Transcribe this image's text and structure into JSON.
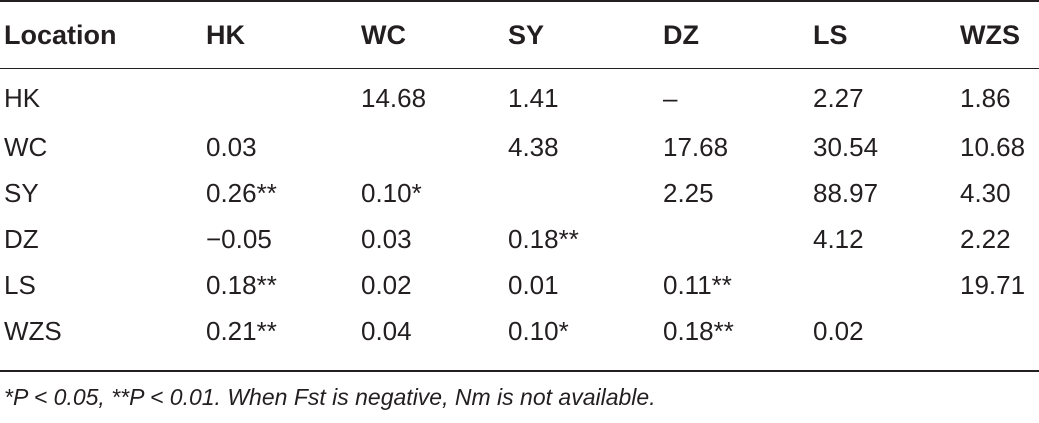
{
  "table": {
    "headers": [
      "Location",
      "HK",
      "WC",
      "SY",
      "DZ",
      "LS",
      "WZS"
    ],
    "rows": [
      [
        "HK",
        "",
        "14.68",
        "1.41",
        "–",
        "2.27",
        "1.86"
      ],
      [
        "WC",
        "0.03",
        "",
        "4.38",
        "17.68",
        "30.54",
        "10.68"
      ],
      [
        "SY",
        "0.26**",
        "0.10*",
        "",
        "2.25",
        "88.97",
        "4.30"
      ],
      [
        "DZ",
        "−0.05",
        "0.03",
        "0.18**",
        "",
        "4.12",
        "2.22"
      ],
      [
        "LS",
        "0.18**",
        "0.02",
        "0.01",
        "0.11**",
        "",
        "19.71"
      ],
      [
        "WZS",
        "0.21**",
        "0.04",
        "0.10*",
        "0.18**",
        "0.02",
        ""
      ]
    ]
  },
  "footnote": "*P < 0.05, **P < 0.01. When Fst is negative, Nm is not available."
}
